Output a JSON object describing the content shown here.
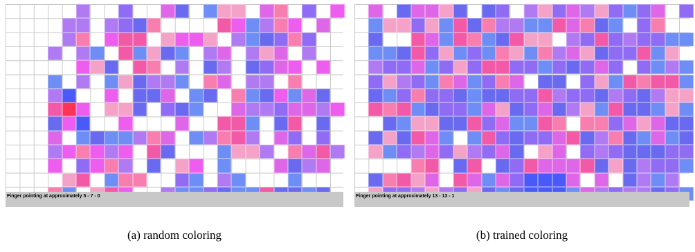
{
  "panels": [
    {
      "status_text": "Finger pointing at approximately 5 - 7 - 0",
      "caption": "(a) random coloring"
    },
    {
      "status_text": "Finger pointing at approximately 13 - 13 - 1",
      "caption": "(b) trained coloring"
    }
  ],
  "colors": {
    "status_bar": "#c8c8c8",
    "grid_line": "#c8c8c8",
    "cell_palette": [
      "#6a6af0",
      "#8f6cf3",
      "#6f8ef5",
      "#b07af3",
      "#dd67e6",
      "#f25aa8",
      "#f97eb0",
      "#f5a2c8",
      "#ee5eee",
      "#4a5af8",
      "#ff3355"
    ]
  }
}
